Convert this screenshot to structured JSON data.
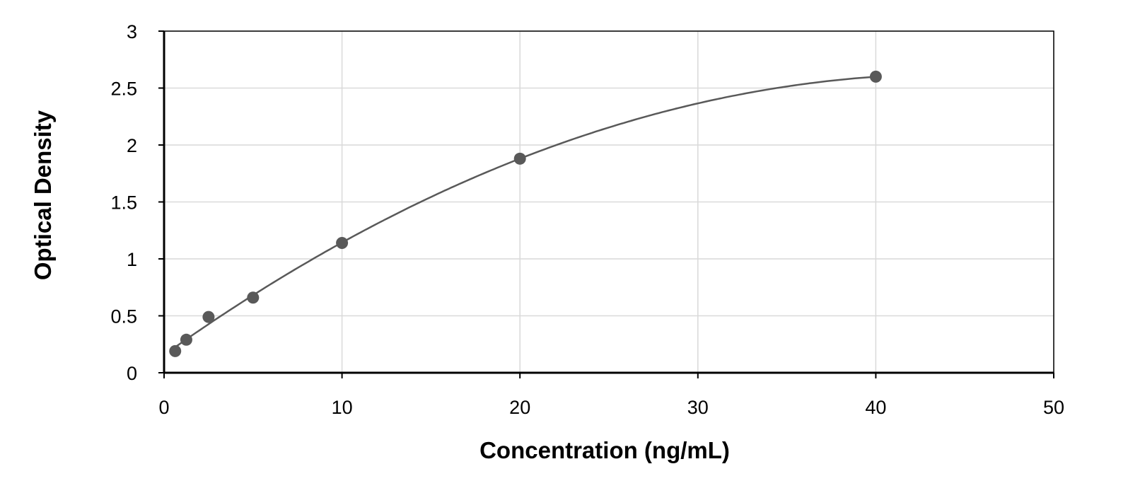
{
  "chart_data": {
    "type": "scatter",
    "title": "",
    "xlabel": "Concentration (ng/mL)",
    "ylabel": "Optical Density",
    "xlim": [
      0,
      50
    ],
    "ylim": [
      0,
      3
    ],
    "xticks": [
      0,
      10,
      20,
      30,
      40,
      50
    ],
    "yticks": [
      0,
      0.5,
      1,
      1.5,
      2,
      2.5,
      3
    ],
    "grid": true,
    "trendline": "polynomial",
    "colors": {
      "points": "#595959",
      "line": "#595959",
      "grid": "#d9d9d9",
      "axis": "#000000"
    },
    "x": [
      0.625,
      1.25,
      2.5,
      5,
      10,
      20,
      40
    ],
    "y": [
      0.19,
      0.29,
      0.49,
      0.66,
      1.14,
      1.88,
      2.6
    ]
  }
}
